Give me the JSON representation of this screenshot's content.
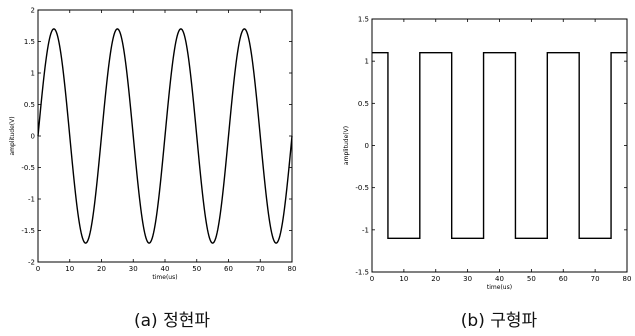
{
  "chart_data": [
    {
      "type": "line",
      "caption": "(a) 정현파",
      "xlabel": "time(us)",
      "ylabel": "amplitude(V)",
      "xlim": [
        0,
        80
      ],
      "ylim": [
        -2,
        2
      ],
      "xticks": [
        0,
        10,
        20,
        30,
        40,
        50,
        60,
        70,
        80
      ],
      "yticks": [
        -2,
        -1.5,
        -1,
        -0.5,
        0,
        0.5,
        1,
        1.5,
        2
      ],
      "xtick_labels": [
        "0",
        "10",
        "20",
        "30",
        "40",
        "50",
        "60",
        "70",
        "80"
      ],
      "ytick_labels": [
        "-2",
        "-1.5",
        "-1",
        "-0.5",
        "0",
        "0.5",
        "1",
        "1.5",
        "2"
      ],
      "grid": false,
      "series": [
        {
          "color": "#000000",
          "x": [
            0,
            2.5,
            5,
            7.5,
            10,
            12.5,
            15,
            17.5,
            20,
            22.5,
            25,
            27.5,
            30,
            32.5,
            35,
            37.5,
            40,
            42.5,
            45,
            47.5,
            50,
            52.5,
            55,
            57.5,
            60,
            62.5,
            65,
            67.5,
            70,
            72.5,
            75,
            77.5,
            80
          ],
          "y": [
            0,
            1.2,
            1.7,
            1.2,
            0,
            -1.2,
            -1.7,
            -1.2,
            0,
            1.2,
            1.7,
            1.2,
            0,
            -1.2,
            -1.7,
            -1.2,
            0,
            1.2,
            1.7,
            1.2,
            0,
            -1.2,
            -1.7,
            -1.2,
            0,
            1.2,
            1.7,
            1.2,
            0,
            -1.2,
            -1.7,
            -1.2,
            0
          ]
        }
      ]
    },
    {
      "type": "line",
      "caption": "(b) 구형파",
      "xlabel": "time(us)",
      "ylabel": "amplitude(V)",
      "xlim": [
        0,
        80
      ],
      "ylim": [
        -1.5,
        1.5
      ],
      "xticks": [
        0,
        10,
        20,
        30,
        40,
        50,
        60,
        70,
        80
      ],
      "yticks": [
        -1.5,
        -1,
        -0.5,
        0,
        0.5,
        1,
        1.5
      ],
      "xtick_labels": [
        "0",
        "10",
        "20",
        "30",
        "40",
        "50",
        "60",
        "70",
        "80"
      ],
      "ytick_labels": [
        "-1.5",
        "-1",
        "-0.5",
        "0",
        "0.5",
        "1",
        "1.5"
      ],
      "grid": false,
      "series": [
        {
          "color": "#000000",
          "x": [
            0,
            5,
            5,
            15,
            15,
            25,
            25,
            35,
            35,
            45,
            45,
            55,
            55,
            65,
            65,
            75,
            75,
            80
          ],
          "y": [
            1.1,
            1.1,
            -1.1,
            -1.1,
            1.1,
            1.1,
            -1.1,
            -1.1,
            1.1,
            1.1,
            -1.1,
            -1.1,
            1.1,
            1.1,
            -1.1,
            -1.1,
            1.1,
            1.1
          ]
        }
      ]
    }
  ]
}
